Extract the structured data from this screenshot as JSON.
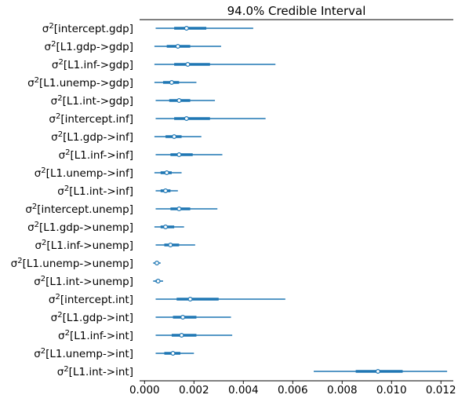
{
  "chart_data": {
    "type": "forest",
    "title": "94.0% Credible Interval",
    "xlabel": "",
    "ylabel": "",
    "xlim": [
      -0.0002,
      0.0125
    ],
    "xticks": [
      0.0,
      0.002,
      0.004,
      0.006,
      0.008,
      0.01,
      0.012
    ],
    "xtick_labels": [
      "0.000",
      "0.002",
      "0.004",
      "0.006",
      "0.008",
      "0.010",
      "0.012"
    ],
    "label_prefix": "σ",
    "label_superscript": "2",
    "colors": {
      "interval": "#1f77b4",
      "axis": "#000000",
      "marker_fill": "#ffffff"
    },
    "parameters": [
      {
        "label": "[intercept.gdp]",
        "hdi_low": 0.00045,
        "hdi_high": 0.0044,
        "iqr_low": 0.0012,
        "iqr_high": 0.0025,
        "median": 0.0017
      },
      {
        "label": "[L1.gdp->gdp]",
        "hdi_low": 0.0004,
        "hdi_high": 0.0031,
        "iqr_low": 0.0009,
        "iqr_high": 0.00185,
        "median": 0.00135
      },
      {
        "label": "[L1.inf->gdp]",
        "hdi_low": 0.0004,
        "hdi_high": 0.0053,
        "iqr_low": 0.0012,
        "iqr_high": 0.00265,
        "median": 0.00175
      },
      {
        "label": "[L1.unemp->gdp]",
        "hdi_low": 0.0004,
        "hdi_high": 0.0021,
        "iqr_low": 0.00075,
        "iqr_high": 0.0014,
        "median": 0.0011
      },
      {
        "label": "[L1.int->gdp]",
        "hdi_low": 0.00045,
        "hdi_high": 0.00285,
        "iqr_low": 0.001,
        "iqr_high": 0.00185,
        "median": 0.0014
      },
      {
        "label": "[intercept.inf]",
        "hdi_low": 0.00045,
        "hdi_high": 0.0049,
        "iqr_low": 0.0012,
        "iqr_high": 0.00265,
        "median": 0.0017
      },
      {
        "label": "[L1.gdp->inf]",
        "hdi_low": 0.0004,
        "hdi_high": 0.0023,
        "iqr_low": 0.00085,
        "iqr_high": 0.0015,
        "median": 0.0012
      },
      {
        "label": "[L1.inf->inf]",
        "hdi_low": 0.00045,
        "hdi_high": 0.00315,
        "iqr_low": 0.00105,
        "iqr_high": 0.00195,
        "median": 0.0014
      },
      {
        "label": "[L1.unemp->inf]",
        "hdi_low": 0.0004,
        "hdi_high": 0.0015,
        "iqr_low": 0.00065,
        "iqr_high": 0.0011,
        "median": 0.0009
      },
      {
        "label": "[L1.int->inf]",
        "hdi_low": 0.00045,
        "hdi_high": 0.00135,
        "iqr_low": 0.00065,
        "iqr_high": 0.00105,
        "median": 0.00085
      },
      {
        "label": "[intercept.unemp]",
        "hdi_low": 0.00045,
        "hdi_high": 0.00295,
        "iqr_low": 0.00105,
        "iqr_high": 0.00185,
        "median": 0.0014
      },
      {
        "label": "[L1.gdp->unemp]",
        "hdi_low": 0.0004,
        "hdi_high": 0.0016,
        "iqr_low": 0.00065,
        "iqr_high": 0.0012,
        "median": 0.00085
      },
      {
        "label": "[L1.inf->unemp]",
        "hdi_low": 0.00045,
        "hdi_high": 0.00205,
        "iqr_low": 0.0008,
        "iqr_high": 0.0014,
        "median": 0.00105
      },
      {
        "label": "[L1.unemp->unemp]",
        "hdi_low": 0.00035,
        "hdi_high": 0.00065,
        "iqr_low": 0.00042,
        "iqr_high": 0.00056,
        "median": 0.0005
      },
      {
        "label": "[L1.int->unemp]",
        "hdi_low": 0.00035,
        "hdi_high": 0.00075,
        "iqr_low": 0.00045,
        "iqr_high": 0.00062,
        "median": 0.00055
      },
      {
        "label": "[intercept.int]",
        "hdi_low": 0.00045,
        "hdi_high": 0.0057,
        "iqr_low": 0.0013,
        "iqr_high": 0.003,
        "median": 0.00185
      },
      {
        "label": "[L1.gdp->int]",
        "hdi_low": 0.00045,
        "hdi_high": 0.0035,
        "iqr_low": 0.00115,
        "iqr_high": 0.0021,
        "median": 0.00155
      },
      {
        "label": "[L1.inf->int]",
        "hdi_low": 0.00045,
        "hdi_high": 0.00355,
        "iqr_low": 0.0011,
        "iqr_high": 0.0021,
        "median": 0.0015
      },
      {
        "label": "[L1.unemp->int]",
        "hdi_low": 0.00045,
        "hdi_high": 0.002,
        "iqr_low": 0.0008,
        "iqr_high": 0.00145,
        "median": 0.00115
      },
      {
        "label": "[L1.int->int]",
        "hdi_low": 0.00685,
        "hdi_high": 0.01225,
        "iqr_low": 0.00855,
        "iqr_high": 0.01045,
        "median": 0.00945
      }
    ]
  }
}
